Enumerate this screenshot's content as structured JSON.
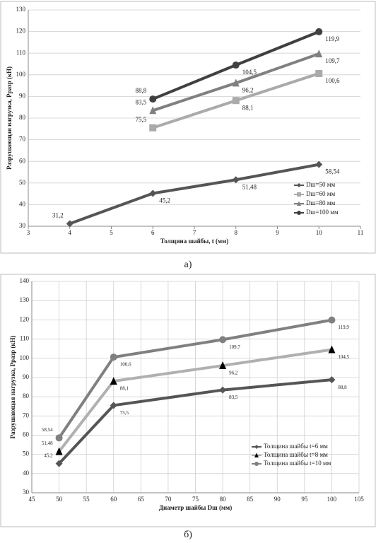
{
  "chart_data": [
    {
      "type": "line",
      "caption": "а)",
      "xlabel": "Толщина  шайбы, t (мм)",
      "ylabel": "Разрушающая нагрузка, Рразр (кН)",
      "xlim": [
        3,
        11
      ],
      "xticks": [
        3,
        4,
        5,
        6,
        7,
        8,
        9,
        10,
        11
      ],
      "ylim": [
        30,
        130
      ],
      "yticks": [
        30,
        40,
        50,
        60,
        70,
        80,
        90,
        100,
        110,
        120,
        130
      ],
      "grid": "y",
      "legend": "lower right",
      "series": [
        {
          "name": "Dш=50 мм",
          "color": "#555555",
          "marker": "diamond",
          "x": [
            4,
            6,
            8,
            10
          ],
          "values": [
            31.2,
            45.2,
            51.48,
            58.54
          ],
          "value_labels": [
            "31,2",
            "45,2",
            "51,48",
            "58,54"
          ]
        },
        {
          "name": "Dш=60 мм",
          "color": "#aaaaaa",
          "marker": "square",
          "x": [
            6,
            8,
            10
          ],
          "values": [
            75.5,
            88.1,
            100.6
          ],
          "value_labels": [
            "75,5",
            "88,1",
            "100,6"
          ]
        },
        {
          "name": "Dш=80 мм",
          "color": "#808080",
          "marker": "triangle",
          "x": [
            6,
            8,
            10
          ],
          "values": [
            83.5,
            96.2,
            109.7
          ],
          "value_labels": [
            "83,5",
            "96,2",
            "109,7"
          ]
        },
        {
          "name": "Dш=100 мм",
          "color": "#404040",
          "marker": "circle",
          "x": [
            6,
            8,
            10
          ],
          "values": [
            88.8,
            104.5,
            119.9
          ],
          "value_labels": [
            "88,8",
            "104,5",
            "119,9"
          ]
        }
      ]
    },
    {
      "type": "line",
      "caption": "б)",
      "xlabel": "Диаметр шайбы  Dш  (мм)",
      "ylabel": "Разрушающая нагрузка, Рразр (кН)",
      "xlim": [
        45,
        105
      ],
      "xticks": [
        45,
        50,
        55,
        60,
        65,
        70,
        75,
        80,
        85,
        90,
        95,
        100,
        105
      ],
      "ylim": [
        30,
        140
      ],
      "yticks": [
        30,
        40,
        50,
        60,
        70,
        80,
        90,
        100,
        110,
        120,
        130,
        140
      ],
      "grid": "both",
      "legend": "lower right",
      "series": [
        {
          "name": "Толщина шайбы t=6 мм",
          "color": "#555555",
          "marker": "diamond",
          "x": [
            50,
            60,
            80,
            100
          ],
          "values": [
            45.2,
            75.5,
            83.5,
            88.8
          ],
          "value_labels": [
            "45,2",
            "75,5",
            "83,5",
            "88,8"
          ]
        },
        {
          "name": "Толщина шайбы t=8 мм",
          "color": "#b0b0b0",
          "marker_color": "#000000",
          "marker": "triangle",
          "x": [
            50,
            60,
            80,
            100
          ],
          "values": [
            51.48,
            88.1,
            96.2,
            104.5
          ],
          "value_labels": [
            "51,48",
            "88,1",
            "96,2",
            "104,5"
          ]
        },
        {
          "name": "Толщина шайбы t=10 мм",
          "color": "#808080",
          "marker": "circle",
          "x": [
            50,
            60,
            80,
            100
          ],
          "values": [
            58.54,
            100.6,
            109.7,
            119.9
          ],
          "value_labels": [
            "58,54",
            "100,6",
            "109,7",
            "119,9"
          ]
        }
      ]
    }
  ]
}
